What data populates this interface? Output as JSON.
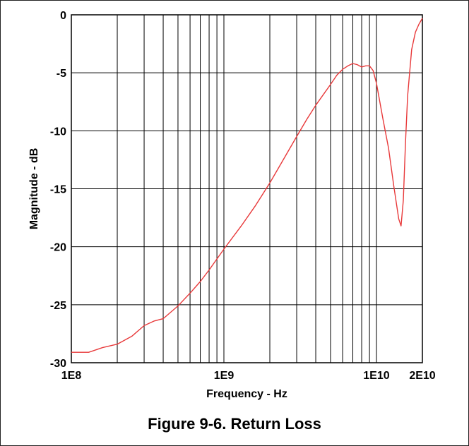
{
  "caption": "Figure 9-6. Return Loss",
  "colors": {
    "series": "#e8393a",
    "grid": "#000000",
    "background": "#ffffff"
  },
  "chart_data": {
    "type": "line",
    "title": "",
    "xlabel": "Frequency - Hz",
    "ylabel": "Magnitude - dB",
    "xscale": "log",
    "xlim": [
      100000000,
      20000000000
    ],
    "ylim": [
      -30,
      0
    ],
    "grid": true,
    "x_tick_labels": [
      {
        "value": 100000000,
        "label": "1E8"
      },
      {
        "value": 1000000000,
        "label": "1E9"
      },
      {
        "value": 10000000000,
        "label": "1E10"
      },
      {
        "value": 20000000000,
        "label": "2E10"
      }
    ],
    "y_ticks": [
      0,
      -5,
      -10,
      -15,
      -20,
      -25,
      -30
    ],
    "series": [
      {
        "name": "",
        "x": [
          100000000,
          130000000,
          160000000,
          200000000,
          250000000,
          300000000,
          350000000,
          400000000,
          500000000,
          600000000,
          700000000,
          800000000,
          1000000000,
          1300000000,
          1600000000,
          2000000000,
          2500000000,
          3000000000,
          3500000000,
          4000000000,
          5000000000,
          5500000000,
          6000000000,
          6500000000,
          7000000000,
          7500000000,
          8000000000,
          8500000000,
          9000000000,
          9500000000,
          10000000000,
          11000000000,
          12000000000,
          13000000000,
          14000000000,
          14500000000,
          15000000000,
          15500000000,
          16000000000,
          17000000000,
          18000000000,
          19000000000,
          20000000000
        ],
        "y": [
          -29.1,
          -29.1,
          -28.7,
          -28.4,
          -27.7,
          -26.8,
          -26.4,
          -26.2,
          -25.1,
          -24.0,
          -23.0,
          -22.0,
          -20.2,
          -18.2,
          -16.5,
          -14.5,
          -12.3,
          -10.5,
          -9.0,
          -7.8,
          -6.0,
          -5.2,
          -4.7,
          -4.4,
          -4.2,
          -4.3,
          -4.5,
          -4.4,
          -4.4,
          -4.8,
          -5.9,
          -8.9,
          -11.5,
          -14.8,
          -17.6,
          -18.2,
          -16.0,
          -11.0,
          -7.0,
          -3.0,
          -1.5,
          -0.8,
          -0.3
        ]
      }
    ]
  }
}
